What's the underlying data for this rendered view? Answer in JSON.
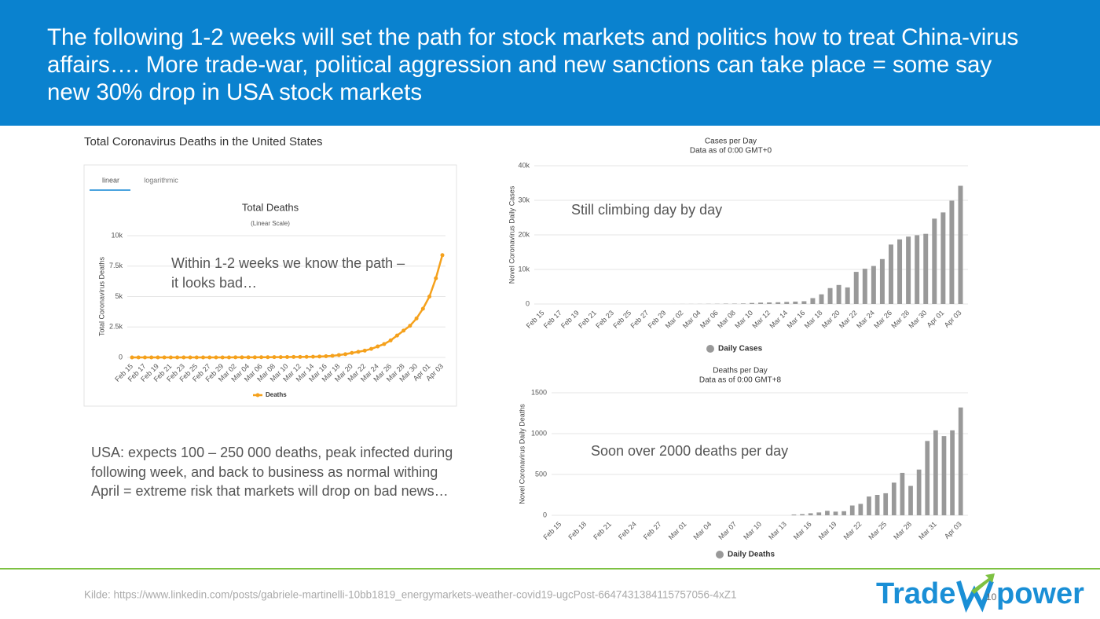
{
  "slide": {
    "title": "The following 1-2 weeks will set the path for stock markets and politics how to treat China-virus affairs…. More trade-war, political aggression and new sanctions can take place = some say new 30% drop in USA stock markets",
    "left_heading": "Total Coronavirus Deaths in the United States",
    "tabs": [
      "linear",
      "logarithmic"
    ],
    "note": "USA: expects 100 – 250 000 deaths, peak infected during following week, and back to business as normal withing April  = extreme risk that markets will drop on bad news…",
    "source": "Kilde: https://www.linkedin.com/posts/gabriele-martinelli-10bb1819_energymarkets-weather-covid19-ugcPost-6647431384115757056-4xZ1",
    "logo_left": "Trade",
    "logo_right": "power",
    "page_number": "10"
  },
  "chart_data": [
    {
      "type": "line",
      "title": "Total Deaths",
      "subtitle": "(Linear Scale)",
      "y_label": "Total Coronavirus Deaths",
      "annotation": "Within 1-2 weeks we know the path – it looks bad…",
      "categories": [
        "Feb 15",
        null,
        "Feb 17",
        null,
        "Feb 19",
        null,
        "Feb 21",
        null,
        "Feb 23",
        null,
        "Feb 25",
        null,
        "Feb 27",
        null,
        "Feb 29",
        null,
        "Mar 02",
        null,
        "Mar 04",
        null,
        "Mar 06",
        null,
        "Mar 08",
        null,
        "Mar 10",
        null,
        "Mar 12",
        null,
        "Mar 14",
        null,
        "Mar 16",
        null,
        "Mar 18",
        null,
        "Mar 20",
        null,
        "Mar 22",
        null,
        "Mar 24",
        null,
        "Mar 26",
        null,
        "Mar 28",
        null,
        "Mar 30",
        null,
        "Apr 01",
        null,
        "Apr 03"
      ],
      "series": [
        {
          "name": "Deaths",
          "color": "#f5a11c",
          "values": [
            0,
            0,
            0,
            0,
            0,
            0,
            0,
            0,
            0,
            0,
            0,
            0,
            0,
            0,
            1,
            1,
            6,
            9,
            11,
            12,
            15,
            19,
            22,
            26,
            30,
            38,
            41,
            48,
            58,
            73,
            99,
            133,
            197,
            265,
            369,
            460,
            560,
            700,
            900,
            1100,
            1400,
            1800,
            2200,
            2600,
            3200,
            4000,
            5000,
            6500,
            8400
          ]
        }
      ],
      "ylim": [
        0,
        10000
      ],
      "yticks": [
        0,
        {
          "value": 2500,
          "label": "2.5k"
        },
        {
          "value": 5000,
          "label": "5k"
        },
        {
          "value": 7500,
          "label": "7.5k"
        },
        {
          "value": 10000,
          "label": "10k"
        }
      ],
      "grid": true
    },
    {
      "type": "bar",
      "title": "Cases per Day",
      "subtitle": "Data as of 0:00 GMT+0",
      "y_label": "Novel Coronavirus Daily Cases",
      "annotation": "Still climbing day by day",
      "categories": [
        "Feb 15",
        null,
        "Feb 17",
        null,
        "Feb 19",
        null,
        "Feb 21",
        null,
        "Feb 23",
        null,
        "Feb 25",
        null,
        "Feb 27",
        null,
        "Feb 29",
        null,
        "Mar 02",
        null,
        "Mar 04",
        null,
        "Mar 06",
        null,
        "Mar 08",
        null,
        "Mar 10",
        null,
        "Mar 12",
        null,
        "Mar 14",
        null,
        "Mar 16",
        null,
        "Mar 18",
        null,
        "Mar 20",
        null,
        "Mar 22",
        null,
        "Mar 24",
        null,
        "Mar 26",
        null,
        "Mar 28",
        null,
        "Mar 30",
        null,
        "Apr 01",
        null,
        "Apr 03"
      ],
      "series": [
        {
          "name": "Daily Cases",
          "color": "#999999",
          "values": [
            0,
            0,
            0,
            0,
            0,
            0,
            0,
            0,
            0,
            0,
            0,
            0,
            0,
            0,
            0,
            5,
            20,
            25,
            30,
            50,
            60,
            100,
            100,
            150,
            300,
            400,
            450,
            500,
            600,
            700,
            800,
            1700,
            2800,
            4600,
            5500,
            4800,
            9300,
            10200,
            11000,
            13000,
            17200,
            18700,
            19500,
            19900,
            20300,
            24700,
            26500,
            29900,
            34200
          ]
        }
      ],
      "ylim": [
        0,
        40000
      ],
      "yticks": [
        0,
        {
          "value": 10000,
          "label": "10k"
        },
        {
          "value": 20000,
          "label": "20k"
        },
        {
          "value": 30000,
          "label": "30k"
        },
        {
          "value": 40000,
          "label": "40k"
        }
      ],
      "grid": true
    },
    {
      "type": "bar",
      "title": "Deaths per Day",
      "subtitle": "Data as of 0:00 GMT+8",
      "y_label": "Novel Coronavirus Daily Deaths",
      "annotation": "Soon over 2000 deaths per day",
      "categories": [
        "Feb 15",
        null,
        null,
        "Feb 18",
        null,
        null,
        "Feb 21",
        null,
        null,
        "Feb 24",
        null,
        null,
        "Feb 27",
        null,
        null,
        "Mar 01",
        null,
        null,
        "Mar 04",
        null,
        null,
        "Mar 07",
        null,
        null,
        "Mar 10",
        null,
        null,
        "Mar 13",
        null,
        null,
        "Mar 16",
        null,
        null,
        "Mar 19",
        null,
        null,
        "Mar 22",
        null,
        null,
        "Mar 25",
        null,
        null,
        "Mar 28",
        null,
        null,
        "Mar 31",
        null,
        null,
        "Apr 03"
      ],
      "series": [
        {
          "name": "Daily Deaths",
          "color": "#999999",
          "values": [
            0,
            0,
            0,
            0,
            0,
            0,
            0,
            0,
            0,
            0,
            0,
            0,
            0,
            0,
            0,
            0,
            0,
            0,
            0,
            0,
            0,
            0,
            0,
            0,
            0,
            0,
            0,
            0,
            10,
            15,
            25,
            35,
            55,
            45,
            50,
            120,
            140,
            230,
            250,
            270,
            400,
            520,
            360,
            560,
            910,
            1040,
            970,
            1040,
            1320
          ]
        }
      ],
      "ylim": [
        0,
        1500
      ],
      "yticks": [
        0,
        500,
        1000,
        1500
      ],
      "grid": true
    }
  ]
}
